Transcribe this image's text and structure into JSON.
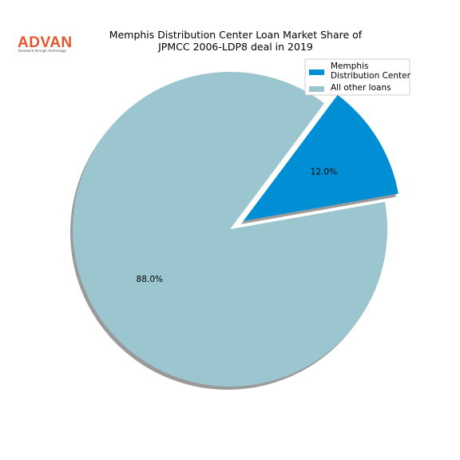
{
  "logo": {
    "name": "ADVAN",
    "tagline": "Research through Technology"
  },
  "chart_data": {
    "type": "pie",
    "title": "Memphis Distribution Center Loan Market Share of\nJPMCC 2006-LDP8 deal in 2019",
    "categories": [
      "Memphis\nDistribution Center",
      "All other loans"
    ],
    "values": [
      12,
      88
    ],
    "value_labels": [
      "12.0%",
      "88.0%"
    ],
    "colors": [
      "#008fd5",
      "#9bc6cf"
    ],
    "start_angle": 10,
    "explode": [
      0.1,
      0
    ],
    "shadow": true,
    "legend": "upper right"
  }
}
